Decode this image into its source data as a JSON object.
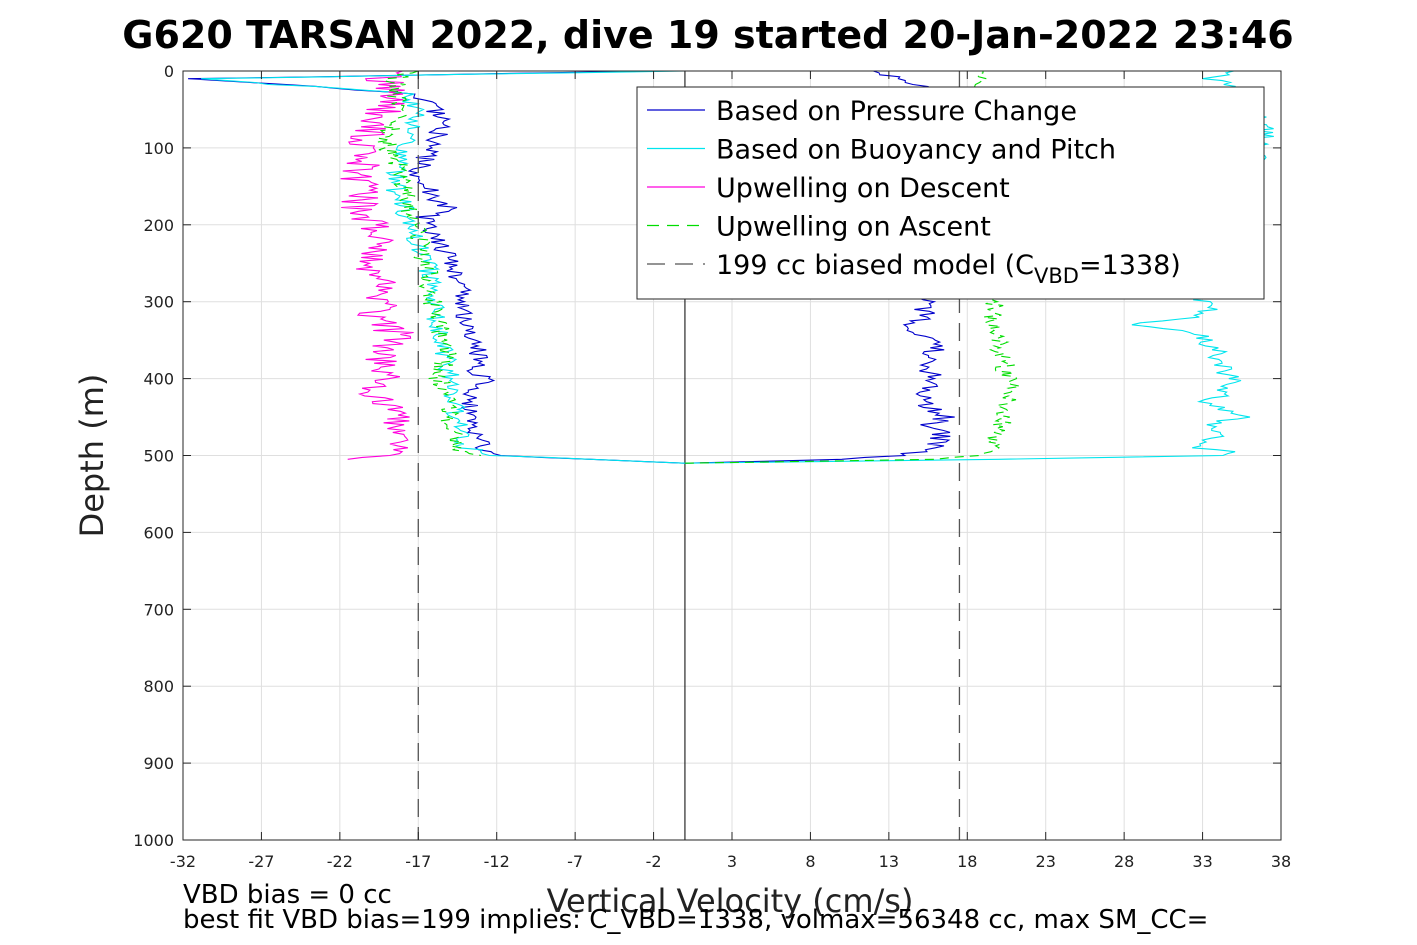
{
  "chart_data": {
    "type": "line",
    "title": "G620 TARSAN 2022, dive 19 started 20-Jan-2022 23:46",
    "xlabel": "Vertical Velocity (cm/s)",
    "ylabel": "Depth (m)",
    "xlim": [
      -32,
      38
    ],
    "ylim": [
      1000,
      0
    ],
    "y_reversed": true,
    "grid": true,
    "legend_position": "top-right",
    "xticks": [
      "-32",
      "-27",
      "-22",
      "-17",
      "-12",
      "-7",
      "-2",
      "3",
      "8",
      "13",
      "18",
      "23",
      "28",
      "33",
      "38"
    ],
    "yticks": [
      "0",
      "100",
      "200",
      "300",
      "400",
      "500",
      "600",
      "700",
      "800",
      "900",
      "1000"
    ],
    "series": [
      {
        "name": "Based on Pressure Change",
        "color": "#0000cc",
        "style": "solid",
        "descent": {
          "depth": [
            0,
            10,
            30,
            50,
            70,
            90,
            110,
            130,
            150,
            170,
            180,
            190,
            210,
            230,
            250,
            270,
            290,
            310,
            330,
            350,
            370,
            390,
            400,
            420,
            440,
            450,
            470,
            490,
            500,
            505,
            510
          ],
          "velocity": [
            -2,
            -31,
            -17,
            -16,
            -15.5,
            -16,
            -16.5,
            -17,
            -16.5,
            -16,
            -14.5,
            -16.5,
            -16,
            -15.5,
            -15,
            -14.5,
            -14,
            -14.3,
            -13.8,
            -13.5,
            -13.2,
            -13.5,
            -12.8,
            -13.5,
            -14,
            -13.5,
            -13.2,
            -13,
            -11.5,
            -6,
            0
          ]
        },
        "ascent": {
          "depth": [
            510,
            505,
            500,
            490,
            470,
            460,
            450,
            430,
            410,
            400,
            390,
            370,
            350,
            340,
            330,
            320,
            310,
            300,
            100,
            20,
            0
          ],
          "velocity": [
            0,
            10,
            14,
            16,
            16.5,
            15.5,
            16.8,
            15,
            15.5,
            16,
            15.5,
            15.8,
            16,
            14.5,
            14.2,
            15.5,
            15.2,
            15.5,
            13,
            15,
            12
          ]
        }
      },
      {
        "name": "Based on Buoyancy and Pitch",
        "color": "#00e5ee",
        "style": "solid",
        "descent": {
          "depth": [
            0,
            10,
            30,
            60,
            100,
            150,
            200,
            250,
            300,
            350,
            400,
            450,
            490,
            500,
            505,
            510
          ],
          "velocity": [
            0,
            -31,
            -17.5,
            -17,
            -18,
            -18.5,
            -17.5,
            -16.5,
            -16,
            -15.5,
            -15,
            -14.5,
            -14,
            -12,
            -6,
            0
          ]
        },
        "ascent": {
          "depth": [
            510,
            505,
            500,
            495,
            490,
            480,
            470,
            460,
            450,
            440,
            430,
            420,
            400,
            380,
            360,
            350,
            340,
            330,
            320,
            310,
            300,
            80,
            20,
            10,
            0
          ],
          "velocity": [
            0,
            20,
            34,
            35,
            33,
            33.5,
            34,
            33.2,
            35.5,
            34,
            33,
            34.5,
            34.8,
            34.2,
            33.8,
            33,
            32.8,
            28,
            33,
            33.5,
            33,
            37,
            35.5,
            33,
            35
          ]
        }
      },
      {
        "name": "Upwelling on Descent",
        "color": "#ff00dd",
        "style": "solid",
        "descent": {
          "depth": [
            0,
            10,
            20,
            40,
            60,
            80,
            100,
            120,
            140,
            160,
            180,
            200,
            220,
            240,
            260,
            280,
            300,
            320,
            340,
            360,
            380,
            400,
            420,
            440,
            460,
            480,
            500,
            505
          ],
          "velocity": [
            -18,
            -19.5,
            -18.5,
            -19,
            -19.5,
            -20,
            -21,
            -20.5,
            -21,
            -20.5,
            -21,
            -20,
            -19.5,
            -20,
            -20,
            -19.5,
            -19,
            -20,
            -18.5,
            -19,
            -19.5,
            -18.5,
            -20,
            -18,
            -18.5,
            -17.5,
            -19,
            -21.5
          ]
        }
      },
      {
        "name": "Upwelling on Ascent",
        "color": "#00dd00",
        "style": "dashed",
        "descent": {
          "depth": [
            0,
            10,
            30,
            50,
            80,
            100,
            130,
            160,
            190,
            220,
            250,
            280,
            310,
            340,
            370,
            400,
            430,
            460,
            490,
            500
          ],
          "velocity": [
            -17,
            -18.5,
            -18.5,
            -18,
            -18.8,
            -19,
            -18,
            -17.8,
            -17.5,
            -16.8,
            -16.5,
            -16.2,
            -16,
            -15.5,
            -15.2,
            -15.8,
            -14.8,
            -15,
            -14.5,
            -13
          ]
        },
        "ascent": {
          "depth": [
            510,
            505,
            500,
            490,
            470,
            450,
            430,
            410,
            390,
            370,
            350,
            330,
            310,
            300,
            10,
            0
          ],
          "velocity": [
            0,
            16,
            19,
            19.5,
            20,
            20.5,
            20.5,
            21,
            20.5,
            20.3,
            20,
            19.8,
            19.5,
            19.8,
            19,
            19
          ]
        }
      },
      {
        "name": "199 cc biased model",
        "legend_label_prefix": "199 cc biased model (C",
        "legend_label_sub": "VBD",
        "legend_label_suffix": "=1338)",
        "color": "#555555",
        "style": "dashed",
        "vertical_lines": [
          -17,
          17.5
        ]
      }
    ],
    "reference_lines": [
      {
        "x": 0,
        "color": "#000000"
      }
    ],
    "annotations": [
      "VBD bias = 0 cc",
      "best fit VBD bias=199 implies: C_VBD=1338, volmax=56348 cc, max SM_CC="
    ]
  }
}
